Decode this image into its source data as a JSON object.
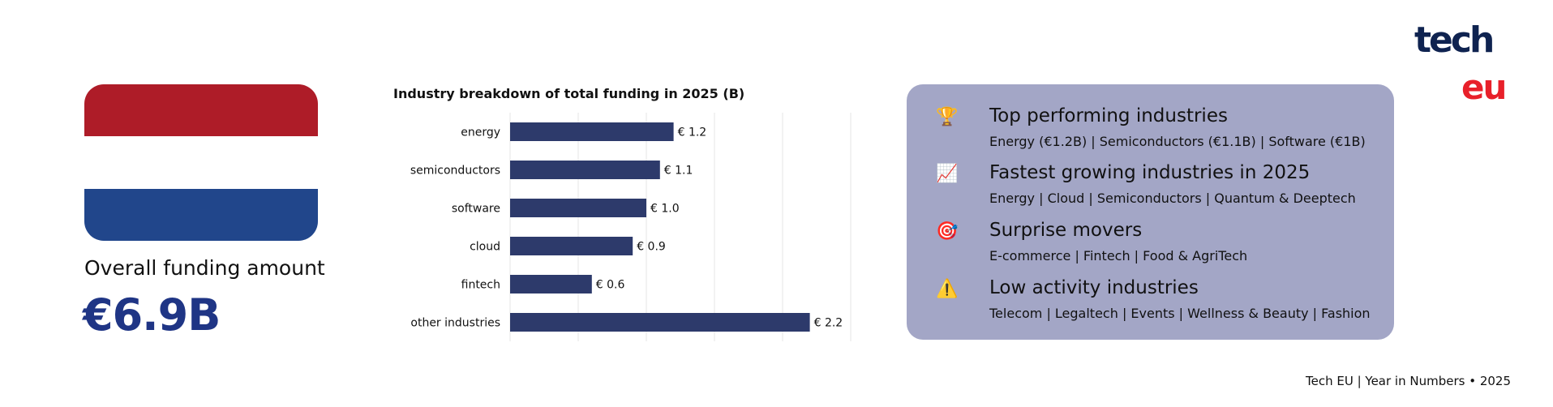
{
  "flag": {
    "colors": [
      "#ae1c28",
      "#ffffff",
      "#21468b"
    ]
  },
  "summary": {
    "label": "Overall funding amount",
    "value": "€6.9B"
  },
  "chart_data": {
    "type": "bar",
    "orientation": "horizontal",
    "title": "Industry breakdown of total funding in 2025 (B)",
    "categories": [
      "energy",
      "semiconductors",
      "software",
      "cloud",
      "fintech",
      "other industries"
    ],
    "values": [
      1.2,
      1.1,
      1.0,
      0.9,
      0.6,
      2.2
    ],
    "data_labels": [
      "€ 1.2",
      "€ 1.1",
      "€ 1.0",
      "€ 0.9",
      "€ 0.6",
      "€ 2.2"
    ],
    "x_ticks": [
      "€ 0.0",
      "€ 0.5",
      "€ 1.0",
      "€ 1.5",
      "€ 2.0",
      "€ 2.5"
    ],
    "xlim": [
      0,
      2.5
    ],
    "grid": true,
    "bar_color": "#2d3a6b"
  },
  "panel": {
    "background": "#a3a6c6",
    "sections": [
      {
        "icon": "trophy-icon",
        "glyph": "🏆",
        "heading": "Top performing industries",
        "detail": "Energy (€1.2B) | Semiconductors (€1.1B) | Software (€1B)"
      },
      {
        "icon": "chart-increasing-icon",
        "glyph": "📈",
        "heading": "Fastest growing industries in 2025",
        "detail": "Energy | Cloud | Semiconductors | Quantum & Deeptech"
      },
      {
        "icon": "target-icon",
        "glyph": "🎯",
        "heading": "Surprise movers",
        "detail": "E-commerce | Fintech | Food & AgriTech"
      },
      {
        "icon": "warning-icon",
        "glyph": "⚠️",
        "heading": "Low activity industries",
        "detail": "Telecom | Legaltech | Events | Wellness & Beauty | Fashion"
      }
    ]
  },
  "logo": {
    "line1": "tech",
    "line2": "eu",
    "color1": "#0f2350",
    "color2": "#e8202a"
  },
  "footer": "Tech EU | Year in Numbers • 2025"
}
